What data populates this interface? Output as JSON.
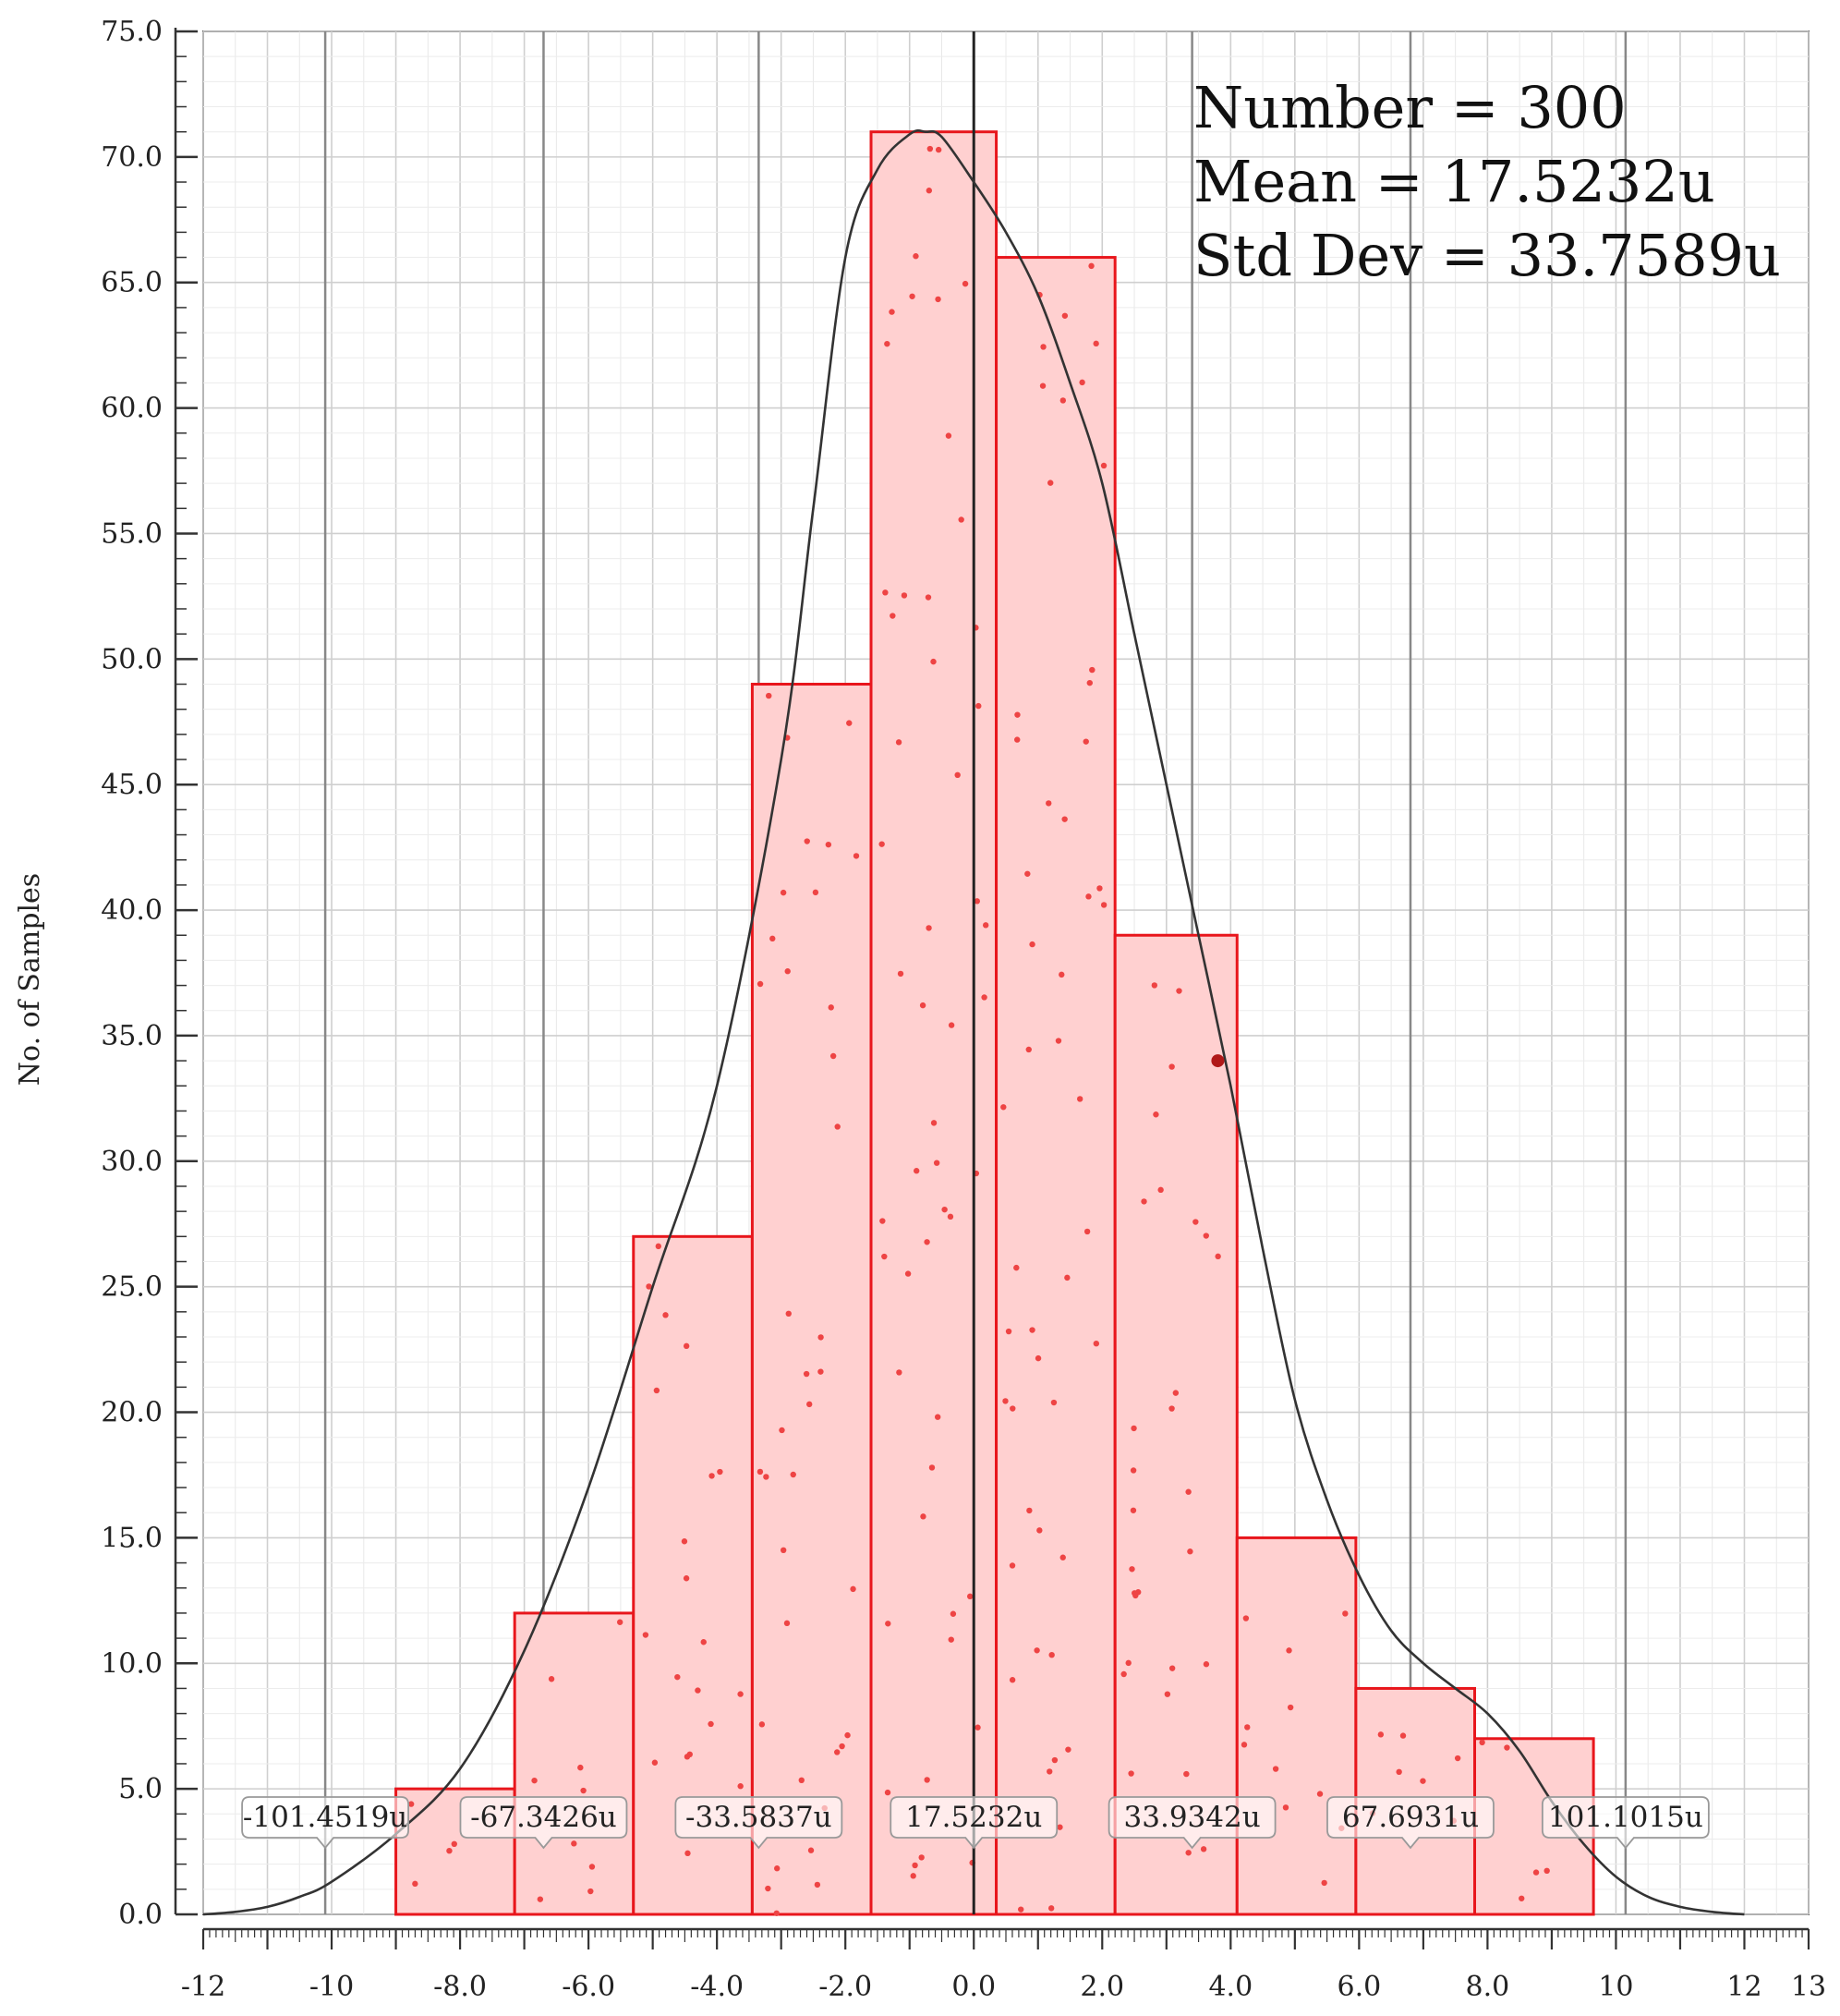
{
  "chart_data": {
    "type": "bar",
    "title": "",
    "xlabel": "",
    "ylabel": "No. of Samples",
    "xlim": [
      -12,
      13
    ],
    "ylim": [
      0,
      75
    ],
    "xticks": [
      -12,
      -10,
      -8,
      -6,
      -4,
      -2,
      0,
      2,
      4,
      6,
      8,
      10,
      12,
      13
    ],
    "xtick_labels": [
      "-12",
      "-10",
      "-8.0",
      "-6.0",
      "-4.0",
      "-2.0",
      "0.0",
      "2.0",
      "4.0",
      "6.0",
      "8.0",
      "10",
      "12",
      "13"
    ],
    "yticks": [
      0,
      5,
      10,
      15,
      20,
      25,
      30,
      35,
      40,
      45,
      50,
      55,
      60,
      65,
      70,
      75
    ],
    "ytick_labels": [
      "0.0",
      "5.0",
      "10.0",
      "15.0",
      "20.0",
      "25.0",
      "30.0",
      "35.0",
      "40.0",
      "45.0",
      "50.0",
      "55.0",
      "60.0",
      "65.0",
      "70.0",
      "75.0"
    ],
    "grid": true,
    "bins": [
      {
        "start": -9.0,
        "end": -7.15,
        "count": 5
      },
      {
        "start": -7.15,
        "end": -5.3,
        "count": 12
      },
      {
        "start": -5.3,
        "end": -3.45,
        "count": 27
      },
      {
        "start": -3.45,
        "end": -1.6,
        "count": 49
      },
      {
        "start": -1.6,
        "end": 0.35,
        "count": 71
      },
      {
        "start": 0.35,
        "end": 2.2,
        "count": 66
      },
      {
        "start": 2.2,
        "end": 4.1,
        "count": 39
      },
      {
        "start": 4.1,
        "end": 5.95,
        "count": 15
      },
      {
        "start": 5.95,
        "end": 7.8,
        "count": 9
      },
      {
        "start": 7.8,
        "end": 9.65,
        "count": 7
      }
    ],
    "fit_curve": {
      "x": [
        -12,
        -11.5,
        -11,
        -10.5,
        -10,
        -9,
        -8,
        -7,
        -6,
        -5,
        -4,
        -3,
        -2.5,
        -2,
        -1.5,
        -1,
        -0.75,
        -0.5,
        0,
        0.5,
        1,
        1.5,
        2,
        2.5,
        3,
        3.5,
        4,
        4.5,
        5,
        5.5,
        6,
        6.5,
        7,
        7.5,
        8,
        8.5,
        9,
        9.5,
        10,
        10.5,
        11,
        11.5,
        12
      ],
      "y": [
        0,
        0.1,
        0.3,
        0.7,
        1.3,
        3.2,
        5.8,
        10.5,
        17,
        25,
        33,
        46,
        56,
        66,
        69.5,
        70.9,
        71,
        70.8,
        69,
        67,
        64.5,
        61,
        57,
        51,
        45,
        39,
        33,
        26.5,
        20.5,
        16.5,
        13.5,
        11.3,
        10,
        9,
        8,
        6.5,
        4.5,
        2.8,
        1.5,
        0.7,
        0.3,
        0.1,
        0
      ]
    },
    "markers": [
      {
        "x": -10.1,
        "label": "-101.4519u"
      },
      {
        "x": -6.7,
        "label": "-67.3426u"
      },
      {
        "x": -3.35,
        "label": "-33.5837u"
      },
      {
        "x": 0.0,
        "label": "17.5232u"
      },
      {
        "x": 3.4,
        "label": "33.9342u"
      },
      {
        "x": 6.8,
        "label": "67.6931u"
      },
      {
        "x": 10.15,
        "label": "101.1015u"
      }
    ],
    "highlight_point": {
      "x": 3.8,
      "y": 34
    },
    "stats": {
      "number": "Number = 300",
      "mean": "Mean = 17.5232u",
      "std_dev": "Std Dev = 33.7589u"
    },
    "colors": {
      "bar_fill": "#ffd0d0",
      "bar_edge": "#e8161c",
      "dot": "#ee4444",
      "curve": "#333333",
      "grid": "#d9d9d9",
      "marker_line": "#888888",
      "axis": "#333333"
    }
  }
}
